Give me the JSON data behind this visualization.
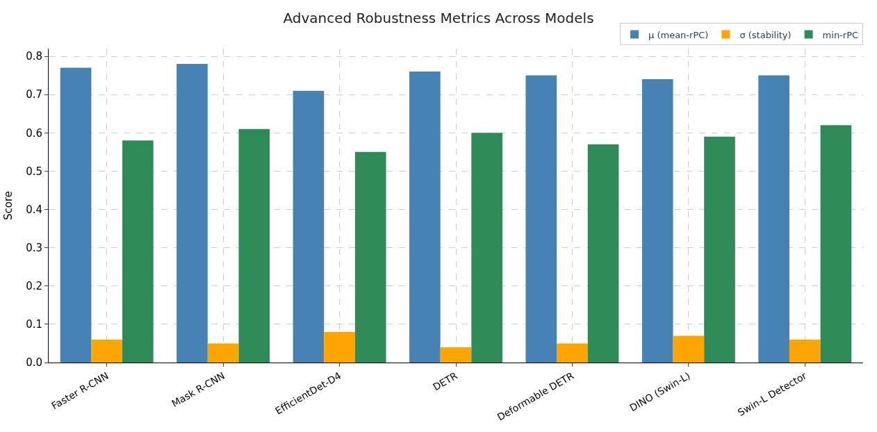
{
  "chart_data": {
    "type": "bar",
    "title": "Advanced Robustness Metrics Across Models",
    "ylabel": "Score",
    "categories": [
      "Faster R-CNN",
      "Mask R-CNN",
      "EfficientDet-D4",
      "DETR",
      "Deformable DETR",
      "DINO (Swin-L)",
      "Swin-L Detector"
    ],
    "series": [
      {
        "name": "μ (mean-rPC)",
        "color": "#4682b4",
        "values": [
          0.77,
          0.78,
          0.71,
          0.76,
          0.75,
          0.74,
          0.75
        ]
      },
      {
        "name": "σ (stability)",
        "color": "#ffa500",
        "values": [
          0.06,
          0.05,
          0.08,
          0.04,
          0.05,
          0.07,
          0.06
        ]
      },
      {
        "name": "min-rPC",
        "color": "#2e8b57",
        "values": [
          0.58,
          0.61,
          0.55,
          0.6,
          0.57,
          0.59,
          0.62
        ]
      }
    ],
    "ylim": [
      0,
      0.82
    ],
    "yticks": [
      {
        "value": 0,
        "label": "0.0"
      },
      0.1,
      0.2,
      0.3,
      0.4,
      0.5,
      0.6,
      0.7,
      0.8
    ],
    "grid": true,
    "legend": "top right"
  }
}
